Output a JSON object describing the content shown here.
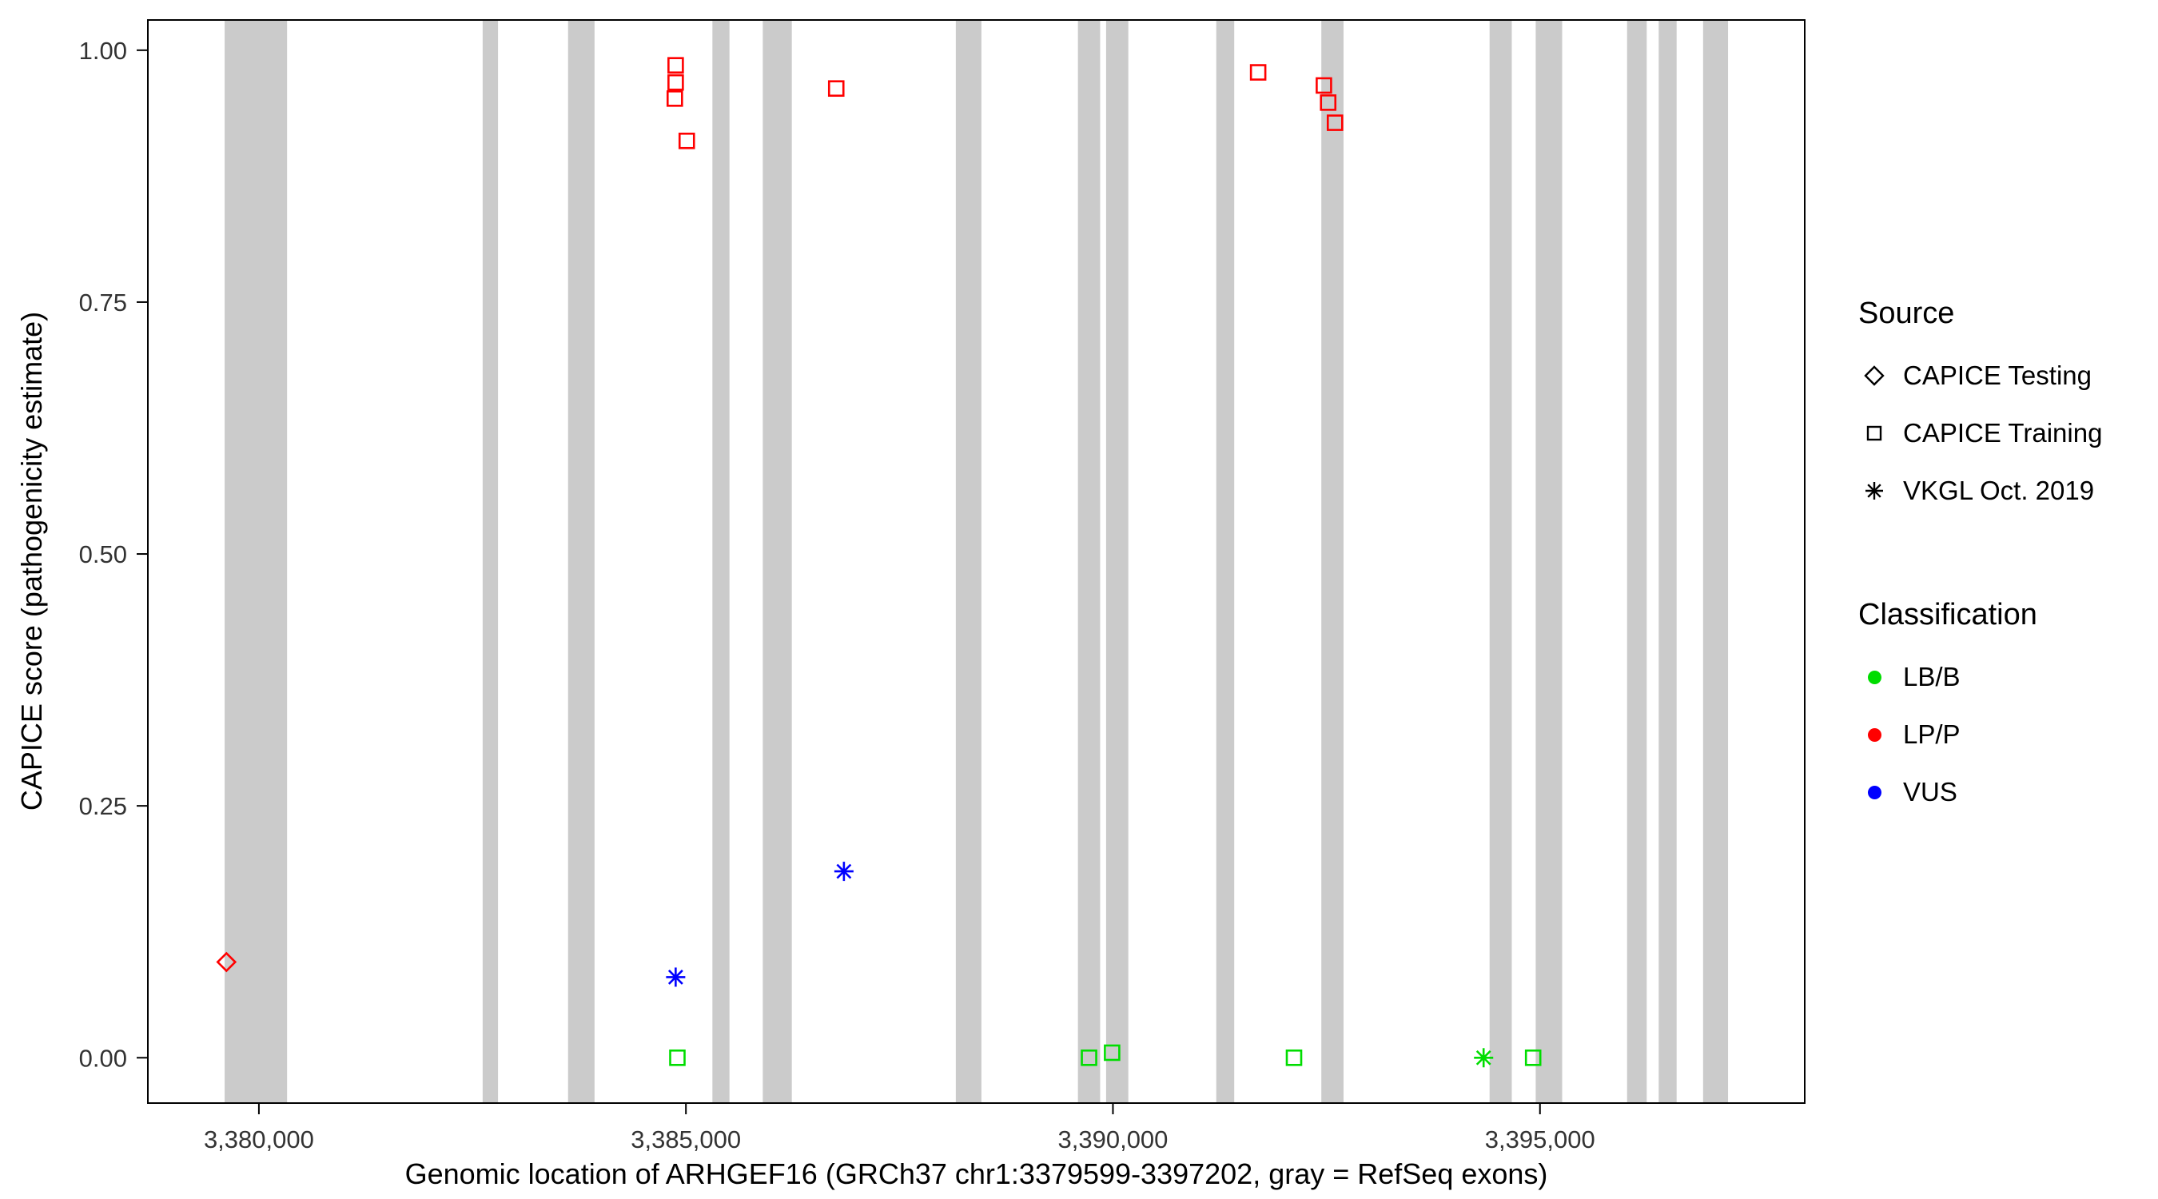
{
  "chart_data": {
    "type": "scatter",
    "xlabel": "Genomic location of ARHGEF16 (GRCh37 chr1:3379599-3397202, gray = RefSeq exons)",
    "ylabel": "CAPICE score (pathogenicity estimate)",
    "xlim": [
      3378700,
      3398100
    ],
    "ylim": [
      -0.045,
      1.03
    ],
    "grid": false,
    "x_ticks": [
      {
        "value": 3380000,
        "label": "3,380,000"
      },
      {
        "value": 3385000,
        "label": "3,385,000"
      },
      {
        "value": 3390000,
        "label": "3,390,000"
      },
      {
        "value": 3395000,
        "label": "3,395,000"
      }
    ],
    "y_ticks": [
      {
        "value": 0.0,
        "label": "0.00"
      },
      {
        "value": 0.25,
        "label": "0.25"
      },
      {
        "value": 0.5,
        "label": "0.50"
      },
      {
        "value": 0.75,
        "label": "0.75"
      },
      {
        "value": 1.0,
        "label": "1.00"
      }
    ],
    "exon_color": "#cbcbcb",
    "exons": [
      [
        3379599,
        3380330
      ],
      [
        3382620,
        3382800
      ],
      [
        3383620,
        3383930
      ],
      [
        3385310,
        3385510
      ],
      [
        3385900,
        3386240
      ],
      [
        3388160,
        3388460
      ],
      [
        3389590,
        3389850
      ],
      [
        3389920,
        3390180
      ],
      [
        3391210,
        3391420
      ],
      [
        3392440,
        3392700
      ],
      [
        3394410,
        3394670
      ],
      [
        3394950,
        3395260
      ],
      [
        3396020,
        3396250
      ],
      [
        3396390,
        3396600
      ],
      [
        3396910,
        3397202
      ]
    ],
    "shape_map": {
      "CAPICE Testing": "diamond",
      "CAPICE Training": "square",
      "VKGL Oct. 2019": "asterisk"
    },
    "color_map": {
      "LB/B": "#00dd00",
      "LP/P": "#ff0000",
      "VUS": "#0000ff"
    },
    "points": [
      {
        "x": 3379620,
        "y": 0.095,
        "source": "CAPICE Testing",
        "classification": "LP/P"
      },
      {
        "x": 3384880,
        "y": 0.985,
        "source": "CAPICE Training",
        "classification": "LP/P"
      },
      {
        "x": 3384880,
        "y": 0.968,
        "source": "CAPICE Training",
        "classification": "LP/P"
      },
      {
        "x": 3384870,
        "y": 0.952,
        "source": "CAPICE Training",
        "classification": "LP/P"
      },
      {
        "x": 3385010,
        "y": 0.91,
        "source": "CAPICE Training",
        "classification": "LP/P"
      },
      {
        "x": 3386760,
        "y": 0.962,
        "source": "CAPICE Training",
        "classification": "LP/P"
      },
      {
        "x": 3391700,
        "y": 0.978,
        "source": "CAPICE Training",
        "classification": "LP/P"
      },
      {
        "x": 3392470,
        "y": 0.965,
        "source": "CAPICE Training",
        "classification": "LP/P"
      },
      {
        "x": 3392520,
        "y": 0.948,
        "source": "CAPICE Training",
        "classification": "LP/P"
      },
      {
        "x": 3392600,
        "y": 0.928,
        "source": "CAPICE Training",
        "classification": "LP/P"
      },
      {
        "x": 3384880,
        "y": 0.08,
        "source": "VKGL Oct. 2019",
        "classification": "VUS"
      },
      {
        "x": 3386850,
        "y": 0.185,
        "source": "VKGL Oct. 2019",
        "classification": "VUS"
      },
      {
        "x": 3384900,
        "y": 0.0,
        "source": "CAPICE Training",
        "classification": "LB/B"
      },
      {
        "x": 3389720,
        "y": 0.0,
        "source": "CAPICE Training",
        "classification": "LB/B"
      },
      {
        "x": 3389990,
        "y": 0.005,
        "source": "CAPICE Training",
        "classification": "LB/B"
      },
      {
        "x": 3392120,
        "y": 0.0,
        "source": "CAPICE Training",
        "classification": "LB/B"
      },
      {
        "x": 3394340,
        "y": 0.0,
        "source": "VKGL Oct. 2019",
        "classification": "LB/B"
      },
      {
        "x": 3394920,
        "y": 0.0,
        "source": "CAPICE Training",
        "classification": "LB/B"
      }
    ],
    "legend": {
      "source": {
        "title": "Source",
        "items": [
          {
            "label": "CAPICE Testing",
            "shape": "diamond"
          },
          {
            "label": "CAPICE Training",
            "shape": "square"
          },
          {
            "label": "VKGL Oct. 2019",
            "shape": "asterisk"
          }
        ]
      },
      "classification": {
        "title": "Classification",
        "items": [
          {
            "label": "LB/B",
            "color": "#00dd00"
          },
          {
            "label": "LP/P",
            "color": "#ff0000"
          },
          {
            "label": "VUS",
            "color": "#0000ff"
          }
        ]
      }
    }
  }
}
